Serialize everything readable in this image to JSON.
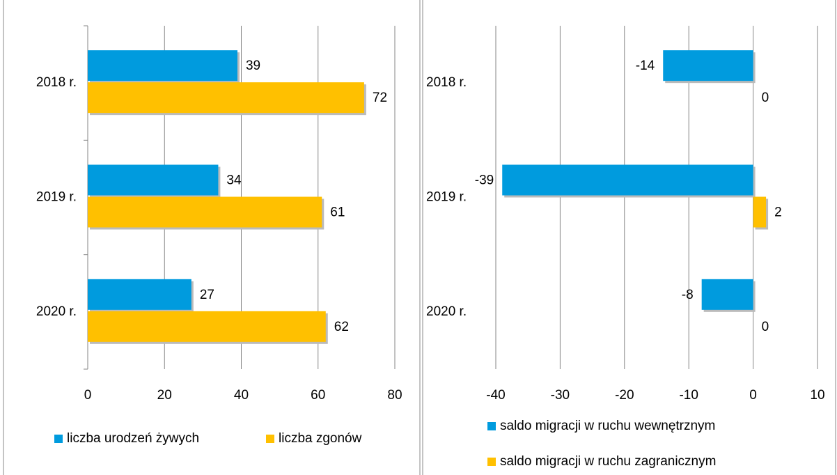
{
  "chart_data": [
    {
      "type": "bar",
      "orientation": "horizontal",
      "categories": [
        "2018 r.",
        "2019 r.",
        "2020 r."
      ],
      "series": [
        {
          "name": "liczba urodzeń żywych",
          "color": "#009bde",
          "values": [
            39,
            34,
            27
          ]
        },
        {
          "name": "liczba zgonów",
          "color": "#ffc000",
          "values": [
            72,
            61,
            62
          ]
        }
      ],
      "xlim": [
        0,
        80
      ],
      "xticks": [
        0,
        20,
        40,
        60,
        80
      ],
      "grid": true,
      "legend": "bottom"
    },
    {
      "type": "bar",
      "orientation": "horizontal",
      "categories": [
        "2018 r.",
        "2019 r.",
        "2020 r."
      ],
      "series": [
        {
          "name": "saldo migracji w ruchu wewnętrznym",
          "color": "#009bde",
          "values": [
            -14,
            -39,
            -8
          ]
        },
        {
          "name": "saldo migracji w ruchu zagranicznym",
          "color": "#ffc000",
          "values": [
            0,
            2,
            0
          ]
        }
      ],
      "xlim": [
        -40,
        10
      ],
      "xticks": [
        -40,
        -30,
        -20,
        -10,
        0,
        10
      ],
      "grid": true,
      "legend": "bottom"
    }
  ]
}
